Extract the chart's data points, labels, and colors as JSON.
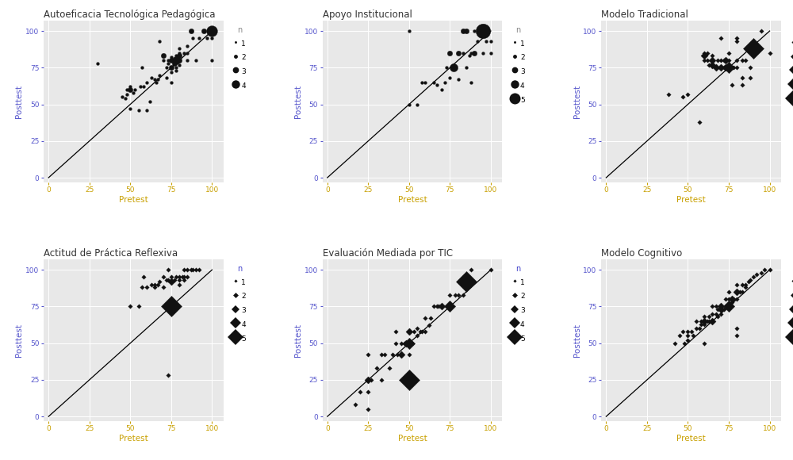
{
  "plots": [
    {
      "title": "Autoeficacia Tecnológica Pedagógica",
      "points": [
        [
          30,
          78,
          1
        ],
        [
          45,
          55,
          1
        ],
        [
          47,
          54,
          1
        ],
        [
          48,
          57,
          1
        ],
        [
          48,
          60,
          1
        ],
        [
          50,
          47,
          1
        ],
        [
          50,
          60,
          2
        ],
        [
          50,
          62,
          1
        ],
        [
          52,
          58,
          1
        ],
        [
          53,
          60,
          1
        ],
        [
          55,
          46,
          1
        ],
        [
          56,
          62,
          1
        ],
        [
          57,
          75,
          1
        ],
        [
          58,
          62,
          1
        ],
        [
          60,
          46,
          1
        ],
        [
          60,
          65,
          1
        ],
        [
          62,
          52,
          1
        ],
        [
          63,
          68,
          1
        ],
        [
          65,
          67,
          1
        ],
        [
          66,
          65,
          1
        ],
        [
          67,
          67,
          1
        ],
        [
          68,
          93,
          1
        ],
        [
          70,
          80,
          1
        ],
        [
          70,
          83,
          2
        ],
        [
          72,
          75,
          1
        ],
        [
          73,
          78,
          1
        ],
        [
          73,
          80,
          1
        ],
        [
          75,
          65,
          1
        ],
        [
          75,
          72,
          1
        ],
        [
          75,
          75,
          2
        ],
        [
          75,
          80,
          2
        ],
        [
          75,
          82,
          1
        ],
        [
          77,
          78,
          2
        ],
        [
          77,
          80,
          1
        ],
        [
          78,
          73,
          1
        ],
        [
          78,
          75,
          1
        ],
        [
          78,
          80,
          3
        ],
        [
          78,
          83,
          1
        ],
        [
          80,
          77,
          1
        ],
        [
          80,
          80,
          2
        ],
        [
          80,
          83,
          2
        ],
        [
          80,
          85,
          1
        ],
        [
          80,
          88,
          1
        ],
        [
          83,
          85,
          1
        ],
        [
          85,
          80,
          1
        ],
        [
          85,
          85,
          1
        ],
        [
          85,
          90,
          1
        ],
        [
          87,
          100,
          2
        ],
        [
          88,
          95,
          1
        ],
        [
          90,
          80,
          1
        ],
        [
          92,
          95,
          1
        ],
        [
          95,
          100,
          2
        ],
        [
          97,
          95,
          1
        ],
        [
          100,
          80,
          1
        ],
        [
          100,
          95,
          1
        ],
        [
          100,
          100,
          4
        ],
        [
          68,
          70,
          1
        ],
        [
          72,
          68,
          1
        ]
      ],
      "legend_max": 4,
      "marker": "o",
      "legend_title_color": "#888888"
    },
    {
      "title": "Apoyo Institucional",
      "points": [
        [
          50,
          50,
          1
        ],
        [
          50,
          100,
          1
        ],
        [
          55,
          50,
          1
        ],
        [
          58,
          65,
          1
        ],
        [
          60,
          65,
          1
        ],
        [
          65,
          65,
          1
        ],
        [
          67,
          63,
          1
        ],
        [
          70,
          60,
          1
        ],
        [
          72,
          65,
          1
        ],
        [
          73,
          75,
          1
        ],
        [
          75,
          68,
          1
        ],
        [
          75,
          85,
          2
        ],
        [
          77,
          75,
          3
        ],
        [
          80,
          67,
          1
        ],
        [
          80,
          85,
          2
        ],
        [
          83,
          85,
          1
        ],
        [
          83,
          100,
          2
        ],
        [
          85,
          75,
          1
        ],
        [
          85,
          100,
          2
        ],
        [
          87,
          83,
          1
        ],
        [
          88,
          65,
          1
        ],
        [
          88,
          85,
          1
        ],
        [
          90,
          85,
          2
        ],
        [
          90,
          100,
          1
        ],
        [
          92,
          93,
          1
        ],
        [
          95,
          85,
          1
        ],
        [
          95,
          100,
          5
        ],
        [
          97,
          93,
          1
        ],
        [
          100,
          85,
          1
        ],
        [
          100,
          93,
          1
        ]
      ],
      "legend_max": 5,
      "marker": "o",
      "legend_title_color": "#888888"
    },
    {
      "title": "Modelo Tradicional",
      "points": [
        [
          38,
          57,
          1
        ],
        [
          47,
          55,
          1
        ],
        [
          50,
          57,
          1
        ],
        [
          57,
          38,
          1
        ],
        [
          60,
          80,
          1
        ],
        [
          60,
          83,
          2
        ],
        [
          60,
          85,
          1
        ],
        [
          62,
          80,
          1
        ],
        [
          62,
          85,
          1
        ],
        [
          63,
          77,
          1
        ],
        [
          65,
          77,
          2
        ],
        [
          65,
          80,
          2
        ],
        [
          65,
          83,
          1
        ],
        [
          67,
          75,
          2
        ],
        [
          68,
          80,
          1
        ],
        [
          70,
          75,
          2
        ],
        [
          70,
          80,
          1
        ],
        [
          70,
          95,
          1
        ],
        [
          72,
          75,
          1
        ],
        [
          72,
          80,
          1
        ],
        [
          73,
          75,
          2
        ],
        [
          73,
          80,
          2
        ],
        [
          75,
          75,
          3
        ],
        [
          75,
          80,
          1
        ],
        [
          75,
          85,
          1
        ],
        [
          77,
          63,
          1
        ],
        [
          77,
          75,
          1
        ],
        [
          78,
          75,
          1
        ],
        [
          80,
          75,
          1
        ],
        [
          80,
          80,
          1
        ],
        [
          80,
          93,
          1
        ],
        [
          80,
          95,
          1
        ],
        [
          83,
          63,
          1
        ],
        [
          83,
          68,
          1
        ],
        [
          83,
          80,
          1
        ],
        [
          85,
          80,
          1
        ],
        [
          88,
          68,
          1
        ],
        [
          88,
          75,
          1
        ],
        [
          90,
          88,
          5
        ],
        [
          95,
          100,
          1
        ],
        [
          100,
          85,
          1
        ]
      ],
      "legend_max": 5,
      "marker": "D",
      "legend_title_color": "#888888"
    },
    {
      "title": "Actitud de Práctica Reflexiva",
      "points": [
        [
          50,
          75,
          1
        ],
        [
          55,
          75,
          1
        ],
        [
          57,
          88,
          1
        ],
        [
          58,
          95,
          1
        ],
        [
          60,
          88,
          1
        ],
        [
          63,
          90,
          1
        ],
        [
          65,
          88,
          1
        ],
        [
          65,
          90,
          1
        ],
        [
          67,
          90,
          1
        ],
        [
          68,
          92,
          1
        ],
        [
          70,
          88,
          1
        ],
        [
          70,
          95,
          1
        ],
        [
          72,
          93,
          1
        ],
        [
          73,
          93,
          1
        ],
        [
          73,
          100,
          1
        ],
        [
          73,
          28,
          1
        ],
        [
          75,
          75,
          5
        ],
        [
          75,
          92,
          2
        ],
        [
          75,
          95,
          1
        ],
        [
          77,
          93,
          1
        ],
        [
          78,
          95,
          1
        ],
        [
          80,
          90,
          1
        ],
        [
          80,
          93,
          1
        ],
        [
          80,
          95,
          1
        ],
        [
          82,
          95,
          1
        ],
        [
          83,
          93,
          1
        ],
        [
          83,
          95,
          1
        ],
        [
          83,
          100,
          1
        ],
        [
          85,
          95,
          1
        ],
        [
          85,
          100,
          1
        ],
        [
          87,
          100,
          1
        ],
        [
          88,
          100,
          1
        ],
        [
          90,
          100,
          1
        ],
        [
          92,
          100,
          1
        ]
      ],
      "legend_max": 5,
      "marker": "D",
      "legend_title_color": "#4444cc"
    },
    {
      "title": "Evaluación Mediada por TIC",
      "points": [
        [
          17,
          8,
          1
        ],
        [
          20,
          17,
          1
        ],
        [
          25,
          5,
          1
        ],
        [
          25,
          17,
          1
        ],
        [
          25,
          25,
          2
        ],
        [
          25,
          42,
          1
        ],
        [
          27,
          25,
          1
        ],
        [
          30,
          33,
          1
        ],
        [
          33,
          25,
          1
        ],
        [
          33,
          42,
          1
        ],
        [
          35,
          42,
          1
        ],
        [
          38,
          33,
          1
        ],
        [
          40,
          42,
          1
        ],
        [
          42,
          50,
          1
        ],
        [
          42,
          58,
          1
        ],
        [
          43,
          42,
          1
        ],
        [
          45,
          42,
          2
        ],
        [
          45,
          50,
          1
        ],
        [
          47,
          50,
          1
        ],
        [
          48,
          50,
          2
        ],
        [
          50,
          25,
          5
        ],
        [
          50,
          42,
          1
        ],
        [
          50,
          50,
          3
        ],
        [
          50,
          58,
          2
        ],
        [
          52,
          50,
          1
        ],
        [
          53,
          58,
          1
        ],
        [
          55,
          55,
          1
        ],
        [
          55,
          60,
          1
        ],
        [
          57,
          58,
          1
        ],
        [
          58,
          58,
          1
        ],
        [
          60,
          58,
          1
        ],
        [
          60,
          67,
          1
        ],
        [
          62,
          62,
          1
        ],
        [
          63,
          67,
          1
        ],
        [
          65,
          75,
          1
        ],
        [
          67,
          75,
          1
        ],
        [
          68,
          75,
          1
        ],
        [
          70,
          75,
          2
        ],
        [
          75,
          75,
          3
        ],
        [
          75,
          83,
          1
        ],
        [
          78,
          83,
          1
        ],
        [
          80,
          83,
          1
        ],
        [
          83,
          83,
          1
        ],
        [
          85,
          92,
          5
        ],
        [
          88,
          100,
          1
        ],
        [
          100,
          100,
          1
        ]
      ],
      "legend_max": 5,
      "marker": "D",
      "legend_title_color": "#4444cc"
    },
    {
      "title": "Modelo Cognitivo",
      "points": [
        [
          42,
          50,
          1
        ],
        [
          45,
          55,
          1
        ],
        [
          47,
          58,
          1
        ],
        [
          48,
          50,
          1
        ],
        [
          50,
          52,
          1
        ],
        [
          50,
          55,
          1
        ],
        [
          50,
          58,
          1
        ],
        [
          52,
          58,
          1
        ],
        [
          53,
          55,
          1
        ],
        [
          55,
          60,
          1
        ],
        [
          55,
          65,
          1
        ],
        [
          57,
          60,
          1
        ],
        [
          58,
          63,
          1
        ],
        [
          58,
          65,
          1
        ],
        [
          60,
          50,
          1
        ],
        [
          60,
          63,
          1
        ],
        [
          60,
          65,
          2
        ],
        [
          60,
          68,
          1
        ],
        [
          62,
          65,
          1
        ],
        [
          63,
          65,
          1
        ],
        [
          63,
          68,
          1
        ],
        [
          65,
          65,
          2
        ],
        [
          65,
          70,
          1
        ],
        [
          65,
          75,
          1
        ],
        [
          67,
          70,
          1
        ],
        [
          67,
          75,
          1
        ],
        [
          68,
          68,
          1
        ],
        [
          68,
          73,
          1
        ],
        [
          70,
          70,
          1
        ],
        [
          70,
          73,
          2
        ],
        [
          70,
          75,
          2
        ],
        [
          72,
          73,
          1
        ],
        [
          73,
          75,
          1
        ],
        [
          73,
          80,
          1
        ],
        [
          75,
          75,
          3
        ],
        [
          75,
          80,
          1
        ],
        [
          75,
          85,
          1
        ],
        [
          77,
          78,
          1
        ],
        [
          77,
          80,
          2
        ],
        [
          78,
          80,
          1
        ],
        [
          80,
          55,
          1
        ],
        [
          80,
          60,
          1
        ],
        [
          80,
          80,
          1
        ],
        [
          80,
          85,
          2
        ],
        [
          80,
          90,
          1
        ],
        [
          82,
          85,
          1
        ],
        [
          83,
          85,
          1
        ],
        [
          83,
          90,
          1
        ],
        [
          85,
          88,
          1
        ],
        [
          85,
          90,
          1
        ],
        [
          87,
          92,
          1
        ],
        [
          88,
          93,
          1
        ],
        [
          90,
          95,
          1
        ],
        [
          92,
          97,
          1
        ],
        [
          95,
          98,
          1
        ],
        [
          97,
          100,
          1
        ],
        [
          100,
          100,
          1
        ]
      ],
      "legend_max": 5,
      "marker": "D",
      "legend_title_color": "#4444cc"
    }
  ],
  "bg_color": "#e8e8e8",
  "point_color": "#111111",
  "title_color": "#333333",
  "axis_label_color_x": "#c8a000",
  "axis_label_color_y": "#5555cc",
  "tick_color_x": "#c8a000",
  "tick_color_y": "#5555cc",
  "grid_color": "#ffffff",
  "legend_title": "n",
  "size_map": {
    "1": 8,
    "2": 22,
    "3": 55,
    "4": 100,
    "5": 180
  }
}
